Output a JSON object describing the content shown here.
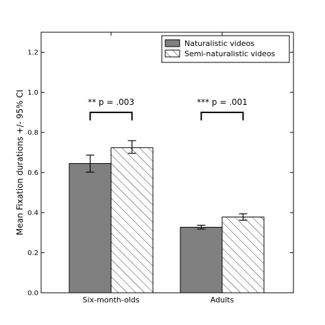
{
  "chart_data": {
    "type": "bar",
    "title": "",
    "xlabel": "",
    "ylabel": "Mean Fixation durations +/- 95% CI",
    "categories": [
      "Six-month-olds",
      "Adults"
    ],
    "ylim": [
      0,
      1.3
    ],
    "yticks": [
      "0.0",
      "0.2",
      "0.4",
      "0.6",
      "0.8",
      "1.0",
      "1.2"
    ],
    "grid": false,
    "legend_position": "top-right",
    "series": [
      {
        "name": "Naturalistic videos",
        "values": [
          0.645,
          0.327
        ],
        "ci_low": [
          0.602,
          0.318
        ],
        "ci_high": [
          0.687,
          0.337
        ],
        "fill": "#808080",
        "pattern": "solid"
      },
      {
        "name": "Semi-naturalistic videos",
        "values": [
          0.724,
          0.378
        ],
        "ci_low": [
          0.696,
          0.362
        ],
        "ci_high": [
          0.759,
          0.394
        ],
        "fill": "#ffffff",
        "pattern": "hatch"
      }
    ],
    "annotations": [
      {
        "category_index": 0,
        "text": "** p = .003",
        "bracket_y": 0.9,
        "bracket_drop": 0.04
      },
      {
        "category_index": 1,
        "text": "*** p = .001",
        "bracket_y": 0.9,
        "bracket_drop": 0.04
      }
    ]
  }
}
